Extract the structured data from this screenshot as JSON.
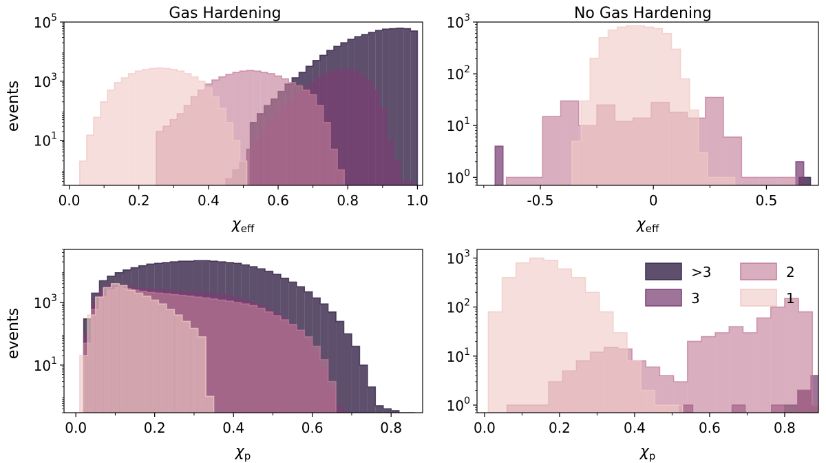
{
  "colors": {
    "gt3": "#3b2a4d",
    "n3": "#7a3f73",
    "n2": "#c17c98",
    "n1": "#efc9c5"
  },
  "legend": {
    "items": [
      {
        "key": "gt3",
        "label": ">3"
      },
      {
        "key": "n2",
        "label": "2"
      },
      {
        "key": "n3",
        "label": "3"
      },
      {
        "key": "n1",
        "label": "1"
      }
    ]
  },
  "chart_data": [
    {
      "type": "bar",
      "title": "Gas Hardening",
      "xlabel": "χ",
      "xlabel_sub": "eff",
      "ylabel": "events",
      "yscale": "log",
      "xlim": [
        -0.015,
        1.015
      ],
      "ylim": [
        0.3,
        100000
      ],
      "xticks": [
        0.0,
        0.2,
        0.4,
        0.6,
        0.8,
        1.0
      ],
      "xtick_labels": [
        "0.0",
        "0.2",
        "0.4",
        "0.6",
        "0.8",
        "1.0"
      ],
      "yticks": [
        10,
        1000,
        100000
      ],
      "ytick_labels": [
        {
          "base": "10",
          "exp": "1"
        },
        {
          "base": "10",
          "exp": "3"
        },
        {
          "base": "10",
          "exp": "5"
        }
      ],
      "series": [
        {
          "key": "gt3",
          "bin_start": 0.52,
          "bin_width": 0.02,
          "values": [
            40,
            80,
            150,
            250,
            450,
            800,
            1300,
            2000,
            3200,
            5000,
            7500,
            11000,
            15000,
            20000,
            26000,
            32000,
            38000,
            45000,
            52000,
            58000,
            60000,
            62000,
            60000,
            50000
          ]
        },
        {
          "key": "n3",
          "bin_start": 0.45,
          "bin_width": 0.02,
          "values": [
            0.5,
            1,
            2,
            5,
            10,
            20,
            40,
            80,
            150,
            250,
            400,
            600,
            900,
            1300,
            1800,
            2200,
            2500,
            2500,
            2200,
            1600,
            1000,
            500,
            120,
            10,
            2,
            0.4,
            0.4
          ]
        },
        {
          "key": "n2",
          "bin_start": 0.25,
          "bin_width": 0.02,
          "values": [
            20,
            30,
            50,
            80,
            150,
            300,
            500,
            800,
            1100,
            1400,
            1700,
            2000,
            2200,
            2300,
            2200,
            2000,
            1800,
            1500,
            1200,
            900,
            700,
            500,
            350,
            150,
            40,
            5,
            1
          ]
        },
        {
          "key": "n1",
          "bin_start": 0.03,
          "bin_width": 0.02,
          "values": [
            2,
            15,
            60,
            200,
            500,
            900,
            1300,
            1800,
            2200,
            2500,
            2700,
            2800,
            2700,
            2500,
            2200,
            1800,
            1400,
            1000,
            600,
            300,
            120,
            40,
            10,
            2
          ]
        }
      ]
    },
    {
      "type": "bar",
      "title": "No Gas Hardening",
      "xlabel": "χ",
      "xlabel_sub": "eff",
      "ylabel": "",
      "yscale": "log",
      "xlim": [
        -0.78,
        0.73
      ],
      "ylim": [
        0.7,
        1000
      ],
      "xticks": [
        -0.5,
        0.0,
        0.5
      ],
      "xtick_labels": [
        "-0.5",
        "0",
        "0.5"
      ],
      "yticks": [
        1,
        10,
        100,
        1000
      ],
      "ytick_labels": [
        {
          "base": "10",
          "exp": "0"
        },
        {
          "base": "10",
          "exp": "1"
        },
        {
          "base": "10",
          "exp": "2"
        },
        {
          "base": "10",
          "exp": "3"
        }
      ],
      "series": [
        {
          "key": "gt3",
          "bin_start": 0.645,
          "bin_width": 0.05,
          "values": [
            1
          ]
        },
        {
          "key": "n3",
          "bin_start": -0.7,
          "bin_width": 0.035,
          "values": [
            4,
            0,
            0,
            0,
            0,
            0,
            0,
            0,
            0,
            0,
            0,
            0,
            0,
            0,
            0,
            0,
            0,
            0,
            0,
            0,
            0,
            0,
            0,
            0,
            0,
            0,
            0,
            0,
            0,
            0,
            0,
            0,
            0,
            0,
            0,
            0,
            0,
            0,
            2
          ]
        },
        {
          "key": "n2",
          "bin_start": -0.65,
          "bin_width": 0.08,
          "values": [
            1,
            1,
            15,
            30,
            10,
            25,
            12,
            14,
            28,
            18,
            14,
            35,
            6,
            1,
            1,
            1
          ]
        },
        {
          "key": "n1",
          "bin_start": -0.36,
          "bin_width": 0.04,
          "values": [
            5,
            30,
            200,
            500,
            700,
            800,
            850,
            850,
            800,
            750,
            600,
            300,
            80,
            20,
            3,
            1,
            1,
            1
          ]
        }
      ]
    },
    {
      "type": "bar",
      "title": "",
      "xlabel": "χ",
      "xlabel_sub": "p",
      "ylabel": "events",
      "yscale": "log",
      "xlim": [
        -0.03,
        0.88
      ],
      "ylim": [
        0.3,
        50000
      ],
      "xticks": [
        0.0,
        0.2,
        0.4,
        0.6,
        0.8
      ],
      "xtick_labels": [
        "0.0",
        "0.2",
        "0.4",
        "0.6",
        "0.8"
      ],
      "yticks": [
        10,
        1000
      ],
      "ytick_labels": [
        {
          "base": "10",
          "exp": "1"
        },
        {
          "base": "10",
          "exp": "3"
        }
      ],
      "series": [
        {
          "key": "gt3",
          "bin_start": 0.02,
          "bin_width": 0.02,
          "values": [
            300,
            2000,
            5000,
            7000,
            9000,
            11000,
            13000,
            15000,
            17000,
            18000,
            19000,
            20000,
            21000,
            21000,
            22000,
            22000,
            21000,
            20000,
            19000,
            18000,
            16000,
            14000,
            12000,
            10000,
            8000,
            6000,
            4500,
            3200,
            2200,
            1400,
            900,
            500,
            250,
            100,
            40,
            10,
            2,
            0.5,
            0.4,
            0.35,
            0.3,
            0.3
          ]
        },
        {
          "key": "n3",
          "bin_start": 0.02,
          "bin_width": 0.02,
          "values": [
            100,
            1000,
            2500,
            3500,
            3800,
            3500,
            3000,
            2800,
            2700,
            2600,
            2500,
            2400,
            2300,
            2200,
            2100,
            2000,
            1900,
            1800,
            1600,
            1400,
            1200,
            1000,
            800,
            600,
            450,
            300,
            200,
            120,
            60,
            25,
            8,
            2,
            0.5,
            0.3
          ]
        },
        {
          "key": "n2",
          "bin_start": 0.02,
          "bin_width": 0.02,
          "values": [
            50,
            600,
            1500,
            2500,
            3000,
            2800,
            2500,
            2300,
            2100,
            2000,
            1900,
            1800,
            1700,
            1600,
            1500,
            1400,
            1300,
            1200,
            1100,
            1000,
            900,
            800,
            650,
            500,
            380,
            280,
            200,
            130,
            80,
            40,
            15,
            3
          ]
        },
        {
          "key": "n1",
          "bin_start": 0.01,
          "bin_width": 0.02,
          "values": [
            20,
            400,
            1500,
            3000,
            4000,
            3500,
            2500,
            2000,
            1600,
            1200,
            900,
            600,
            400,
            250,
            150,
            80,
            1
          ]
        }
      ]
    },
    {
      "type": "bar",
      "title": "",
      "xlabel": "χ",
      "xlabel_sub": "p",
      "ylabel": "",
      "yscale": "log",
      "xlim": [
        -0.02,
        0.89
      ],
      "ylim": [
        0.7,
        1500
      ],
      "xticks": [
        0.0,
        0.2,
        0.4,
        0.6,
        0.8
      ],
      "xtick_labels": [
        "0.0",
        "0.2",
        "0.4",
        "0.6",
        "0.8"
      ],
      "yticks": [
        1,
        10,
        100,
        1000
      ],
      "ytick_labels": [
        {
          "base": "10",
          "exp": "0"
        },
        {
          "base": "10",
          "exp": "1"
        },
        {
          "base": "10",
          "exp": "2"
        },
        {
          "base": "10",
          "exp": "3"
        }
      ],
      "series": [
        {
          "key": "gt3",
          "bin_start": 0.8,
          "bin_width": 0.035,
          "values": [
            1,
            2,
            1
          ]
        },
        {
          "key": "n3",
          "bin_start": 0.52,
          "bin_width": 0.035,
          "values": [
            1,
            0,
            0,
            0,
            1,
            0,
            0,
            1,
            0,
            2,
            4
          ]
        },
        {
          "key": "n2",
          "bin_start": 0.06,
          "bin_width": 0.037,
          "values": [
            1,
            1,
            1,
            3,
            5,
            8,
            12,
            15,
            14,
            8,
            6,
            4,
            3,
            20,
            25,
            30,
            40,
            30,
            60,
            100,
            150,
            80,
            1
          ]
        },
        {
          "key": "n1",
          "bin_start": 0.01,
          "bin_width": 0.037,
          "values": [
            80,
            400,
            800,
            1000,
            900,
            600,
            400,
            200,
            80,
            30,
            8,
            2,
            1,
            1
          ]
        }
      ]
    }
  ]
}
